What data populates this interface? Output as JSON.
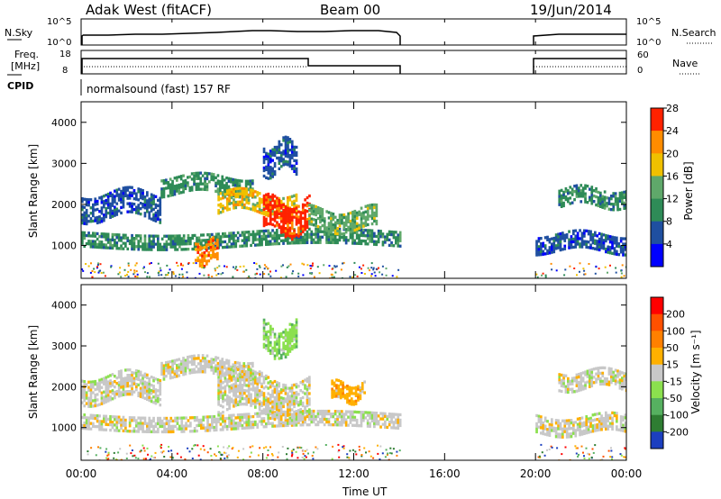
{
  "header": {
    "station": "Adak West (fitACF)",
    "beam": "Beam 00",
    "date": "19/Jun/2014"
  },
  "top_panels": {
    "nsky_label": "N.Sky",
    "nsky_ticks": [
      "10^5",
      "10^0"
    ],
    "nsearch_label": "N.Search",
    "nsearch_ticks": [
      "10^5",
      "10^0"
    ],
    "freq_label_1": "Freq.",
    "freq_label_2": "[MHz]",
    "freq_ticks": [
      "18",
      "8"
    ],
    "nave_label": "Nave",
    "nave_ticks": [
      "60",
      "0"
    ],
    "cpid_label": "CPID",
    "cpid_text": "normalsound (fast) 157 RF"
  },
  "chart_data": [
    {
      "type": "heatmap",
      "name": "power",
      "ylabel": "Slant Range [km]",
      "yticks": [
        "1000",
        "2000",
        "3000",
        "4000"
      ],
      "ylim": [
        200,
        4500
      ],
      "xlim": [
        0,
        24
      ],
      "colorbar_label": "Power [dB]",
      "colorbar_ticks": [
        "4",
        "8",
        "12",
        "16",
        "20",
        "24",
        "28"
      ],
      "colors": [
        "#0000ff",
        "#1f4fa0",
        "#2e8b57",
        "#5fa86a",
        "#f0c000",
        "#ff8c00",
        "#ff2200"
      ],
      "bands": [
        {
          "t0": 0.0,
          "t1": 14.0,
          "r0": 1000,
          "r1": 1350,
          "level": 2
        },
        {
          "t0": 0.0,
          "t1": 3.5,
          "r0": 1700,
          "r1": 2300,
          "level": 1
        },
        {
          "t0": 3.5,
          "t1": 7.5,
          "r0": 2300,
          "r1": 2700,
          "level": 2
        },
        {
          "t0": 6.0,
          "t1": 9.5,
          "r0": 1800,
          "r1": 2300,
          "level": 4
        },
        {
          "t0": 8.0,
          "t1": 10.0,
          "r0": 1350,
          "r1": 2100,
          "level": 6
        },
        {
          "t0": 10.0,
          "t1": 13.0,
          "r0": 1400,
          "r1": 1900,
          "level": 3
        },
        {
          "t0": 5.0,
          "t1": 6.0,
          "r0": 600,
          "r1": 1100,
          "level": 5
        },
        {
          "t0": 8.0,
          "t1": 9.5,
          "r0": 2800,
          "r1": 3500,
          "level": 1
        },
        {
          "t0": 20.0,
          "t1": 24.0,
          "r0": 900,
          "r1": 1300,
          "level": 1
        },
        {
          "t0": 21.0,
          "t1": 24.0,
          "r0": 2000,
          "r1": 2400,
          "level": 2
        }
      ]
    },
    {
      "type": "heatmap",
      "name": "velocity",
      "ylabel": "Slant Range [km]",
      "yticks": [
        "1000",
        "2000",
        "3000",
        "4000"
      ],
      "ylim": [
        200,
        4500
      ],
      "xlim": [
        0,
        24
      ],
      "colorbar_label": "Velocity [m s⁻¹]",
      "colorbar_ticks": [
        "200",
        "100",
        "50",
        "15",
        "-15",
        "-50",
        "-100",
        "-200"
      ],
      "colors": [
        "#1c3fbf",
        "#2e7d32",
        "#56b060",
        "#8be04e",
        "#c8c8c8",
        "#ffb000",
        "#ff8000",
        "#ff5000",
        "#ff0000"
      ],
      "bands": [
        {
          "t0": 0.0,
          "t1": 14.0,
          "r0": 1000,
          "r1": 1350,
          "level": 4
        },
        {
          "t0": 0.0,
          "t1": 3.5,
          "r0": 1700,
          "r1": 2300,
          "level": 4
        },
        {
          "t0": 3.5,
          "t1": 7.5,
          "r0": 2300,
          "r1": 2700,
          "level": 4
        },
        {
          "t0": 6.0,
          "t1": 10.0,
          "r0": 1350,
          "r1": 2300,
          "level": 4
        },
        {
          "t0": 11.0,
          "t1": 12.5,
          "r0": 1700,
          "r1": 2100,
          "level": 5
        },
        {
          "t0": 8.0,
          "t1": 9.5,
          "r0": 2800,
          "r1": 3500,
          "level": 3
        },
        {
          "t0": 20.0,
          "t1": 24.0,
          "r0": 900,
          "r1": 1300,
          "level": 4
        },
        {
          "t0": 21.0,
          "t1": 24.0,
          "r0": 2000,
          "r1": 2400,
          "level": 4
        }
      ]
    }
  ],
  "x_axis": {
    "ticks": [
      "00:00",
      "04:00",
      "08:00",
      "12:00",
      "16:00",
      "20:00",
      "00:00"
    ],
    "label": "Time UT"
  }
}
